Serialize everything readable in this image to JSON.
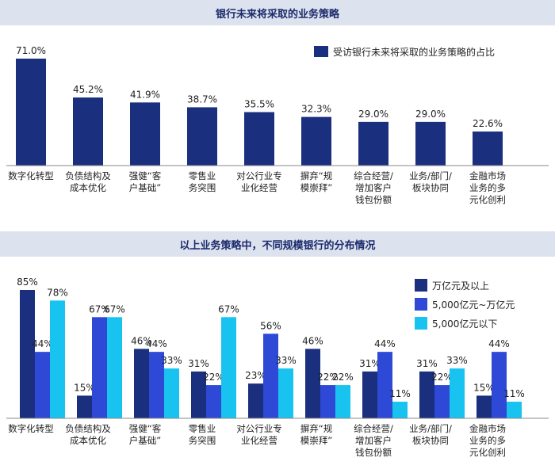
{
  "chart_data": [
    {
      "type": "bar",
      "title": "银行未来将采取的业务策略",
      "categories": [
        [
          "数字化转型"
        ],
        [
          "负债结构及",
          "成本优化"
        ],
        [
          "强健“客",
          "户基础”"
        ],
        [
          "零售业",
          "务突围"
        ],
        [
          "对公行业专",
          "业化经营"
        ],
        [
          "摒弃“规",
          "模崇拜”"
        ],
        [
          "综合经营/",
          "增加客户",
          "钱包份额"
        ],
        [
          "业务/部门/",
          "板块协同"
        ],
        [
          "金融市场",
          "业务的多",
          "元化创利"
        ]
      ],
      "series": [
        {
          "name": "受访银行未来将采取的业务策略的占比",
          "values": [
            71.0,
            45.2,
            41.9,
            38.7,
            35.5,
            32.3,
            29.0,
            29.0,
            22.6
          ],
          "labels": [
            "71.0%",
            "45.2%",
            "41.9%",
            "38.7%",
            "35.5%",
            "32.3%",
            "29.0%",
            "29.0%",
            "22.6%"
          ],
          "color": "#1b2f7f"
        }
      ],
      "ylim": [
        0,
        71
      ],
      "legend": "top-right",
      "grid": false
    },
    {
      "type": "bar",
      "title": "以上业务策略中，不同规模银行的分布情况",
      "categories": [
        [
          "数字化转型"
        ],
        [
          "负债结构及",
          "成本优化"
        ],
        [
          "强健“客",
          "户基础”"
        ],
        [
          "零售业",
          "务突围"
        ],
        [
          "对公行业专",
          "业化经营"
        ],
        [
          "摒弃“规",
          "模崇拜”"
        ],
        [
          "综合经营/",
          "增加客户",
          "钱包份额"
        ],
        [
          "业务/部门/",
          "板块协同"
        ],
        [
          "金融市场",
          "业务的多",
          "元化创利"
        ]
      ],
      "series": [
        {
          "name": "万亿元及以上",
          "values": [
            85,
            15,
            46,
            31,
            23,
            46,
            31,
            31,
            15
          ],
          "color": "#1b2f7f"
        },
        {
          "name": "5,000亿元~万亿元",
          "values": [
            44,
            67,
            44,
            22,
            56,
            22,
            44,
            22,
            44
          ],
          "color": "#2e49d6"
        },
        {
          "name": "5,000亿元以下",
          "values": [
            78,
            67,
            33,
            67,
            33,
            22,
            11,
            33,
            11
          ],
          "color": "#19c3ef"
        }
      ],
      "ylim": [
        0,
        85
      ],
      "legend": "top-right",
      "grid": false
    }
  ]
}
